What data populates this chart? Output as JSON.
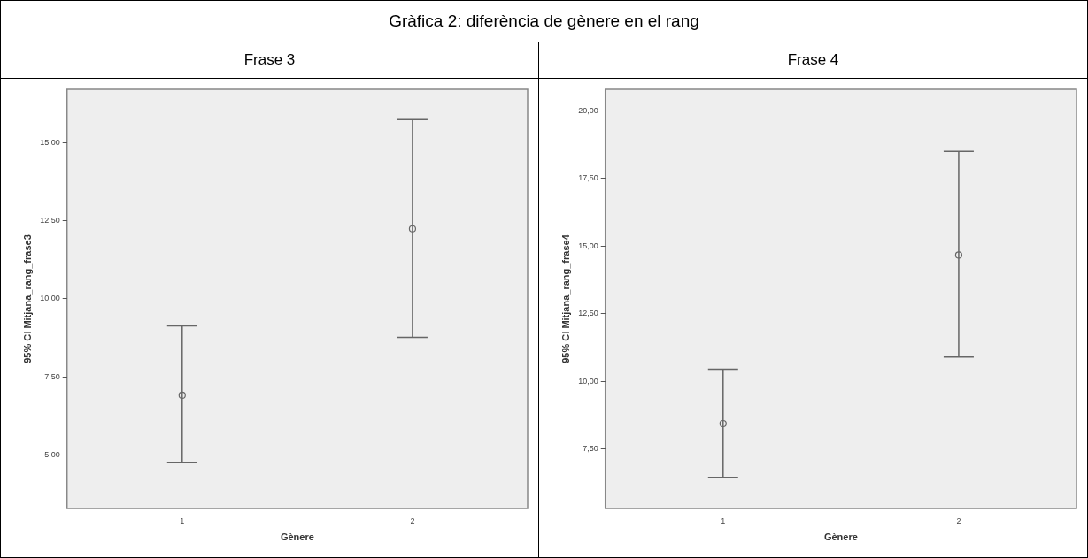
{
  "chart_data": [
    {
      "type": "scatter",
      "title": "Gràfica 2: diferència de gènere en el rang",
      "subtitle": "Frase 3",
      "xlabel": "Gènere",
      "ylabel": "95% CI Mitjana_rang_frase3",
      "categories": [
        "1",
        "2"
      ],
      "series": [
        {
          "color": "#666666",
          "values": [
            6.92,
            12.24
          ],
          "errors": [
            [
              4.76,
              9.14
            ],
            [
              8.77,
              15.73
            ]
          ]
        }
      ],
      "ylim": [
        3.3,
        16.7
      ],
      "yticks": [
        {
          "value": 5,
          "label": "5,00"
        },
        {
          "value": 7.5,
          "label": "7,50"
        },
        {
          "value": 10,
          "label": "10,00"
        },
        {
          "value": 12.5,
          "label": "12,50"
        },
        {
          "value": 15,
          "label": "15,00"
        }
      ],
      "grid": false,
      "marker": "circle"
    },
    {
      "type": "scatter",
      "subtitle": "Frase 4",
      "xlabel": "Gènere",
      "ylabel": "95% CI Mitjana_rang_frase4",
      "categories": [
        "1",
        "2"
      ],
      "series": [
        {
          "color": "#666666",
          "values": [
            8.44,
            14.67
          ],
          "errors": [
            [
              6.45,
              10.45
            ],
            [
              10.9,
              18.5
            ]
          ]
        }
      ],
      "ylim": [
        5.3,
        20.8
      ],
      "yticks": [
        {
          "value": 7.5,
          "label": "7,50"
        },
        {
          "value": 10,
          "label": "10,00"
        },
        {
          "value": 12.5,
          "label": "12,50"
        },
        {
          "value": 15,
          "label": "15,00"
        },
        {
          "value": 17.5,
          "label": "17,50"
        },
        {
          "value": 20,
          "label": "20,00"
        }
      ],
      "grid": false,
      "marker": "circle"
    }
  ]
}
